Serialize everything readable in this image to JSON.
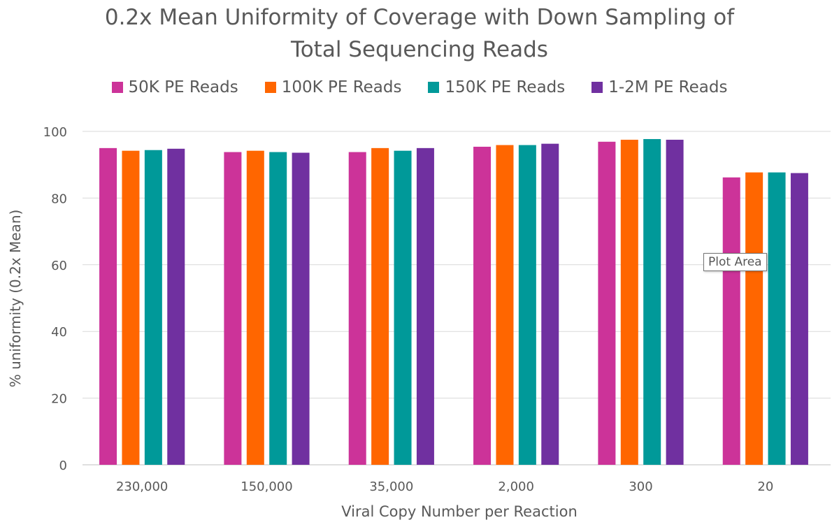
{
  "chart_data": {
    "type": "bar",
    "title": [
      "0.2x Mean Uniformity of Coverage with Down Sampling of",
      "Total Sequencing Reads"
    ],
    "xlabel": "Viral Copy Number per Reaction",
    "ylabel": "% uniformity (0.2x Mean)",
    "ylim": [
      0,
      100
    ],
    "yticks": [
      0,
      20,
      40,
      60,
      80,
      100
    ],
    "grid": true,
    "legend_position": "top",
    "categories": [
      "230,000",
      "150,000",
      "35,000",
      "2,000",
      "300",
      "20"
    ],
    "series": [
      {
        "name": "50K PE Reads",
        "color": "#cc3399",
        "values": [
          95.0,
          93.8,
          93.8,
          95.4,
          96.9,
          86.2
        ]
      },
      {
        "name": "100K PE Reads",
        "color": "#ff6600",
        "values": [
          94.2,
          94.2,
          95.0,
          95.9,
          97.5,
          87.7
        ]
      },
      {
        "name": "150K PE Reads",
        "color": "#009999",
        "values": [
          94.4,
          93.8,
          94.2,
          95.9,
          97.7,
          87.7
        ]
      },
      {
        "name": "1-2M PE Reads",
        "color": "#7030a0",
        "values": [
          94.8,
          93.6,
          95.0,
          96.3,
          97.5,
          87.5
        ]
      }
    ]
  },
  "tooltip": {
    "label": "Plot Area"
  }
}
